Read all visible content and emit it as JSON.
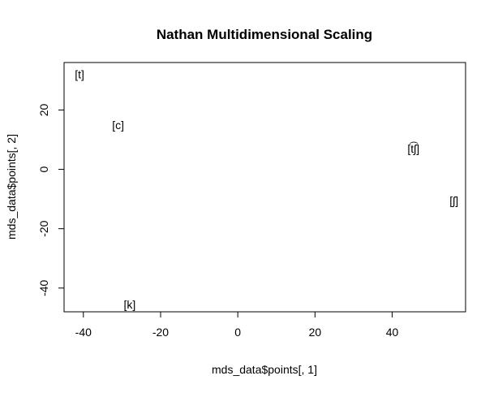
{
  "chart_data": {
    "type": "scatter",
    "title": "Nathan Multidimensional Scaling",
    "xlabel": "mds_data$points[, 1]",
    "ylabel": "mds_data$points[, 2]",
    "xlim": [
      -45,
      59
    ],
    "ylim": [
      -48,
      36
    ],
    "xticks": [
      -40,
      -20,
      0,
      20,
      40
    ],
    "yticks": [
      -40,
      -20,
      0,
      20
    ],
    "grid": false,
    "points": [
      {
        "label": "[t]",
        "x": -41,
        "y": 32
      },
      {
        "label": "[c]",
        "x": -31,
        "y": 15
      },
      {
        "label": "[t͡ʃ]",
        "x": 45.5,
        "y": 7
      },
      {
        "label": "[ʃ]",
        "x": 56,
        "y": -10.5
      },
      {
        "label": "[k]",
        "x": -28,
        "y": -45.5
      }
    ]
  }
}
